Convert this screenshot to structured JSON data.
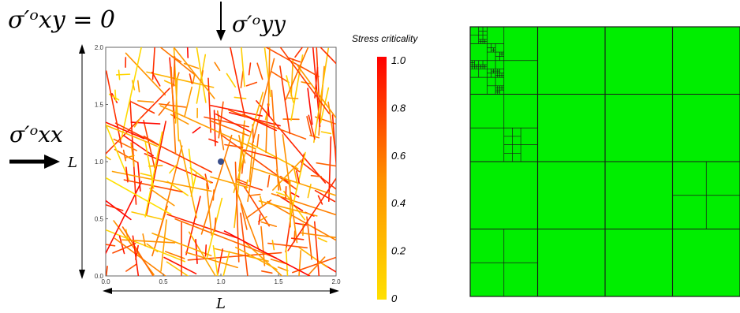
{
  "annotations": {
    "sigma_xy_eq_zero": "σ′ᵒxy = 0",
    "sigma_yy": "σ′ᵒyy",
    "sigma_xx": "σ′ᵒxx",
    "length_label_left": "L",
    "length_label_bottom": "L"
  },
  "fracture_plot": {
    "x_ticks": [
      "0.0",
      "0.5",
      "1.0",
      "1.5",
      "2.0"
    ],
    "y_ticks": [
      "0.0",
      "0.5",
      "1.0",
      "1.5",
      "2.0"
    ],
    "xlim": [
      0,
      2
    ],
    "ylim": [
      0,
      2
    ],
    "center_point": {
      "x": 1.0,
      "y": 1.0,
      "color": "#3a4f8c"
    }
  },
  "colorbar": {
    "title": "Stress criticality",
    "ticks": [
      "1.0",
      "0.8",
      "0.6",
      "0.4",
      "0.2",
      "0"
    ],
    "colors": {
      "low": "#ffe000",
      "high": "#ff0000"
    }
  },
  "matrix_panel": {
    "fill_color": "#00ee00",
    "line_color": "#1a1a1a",
    "diagonal_color": "#7a0000"
  }
}
